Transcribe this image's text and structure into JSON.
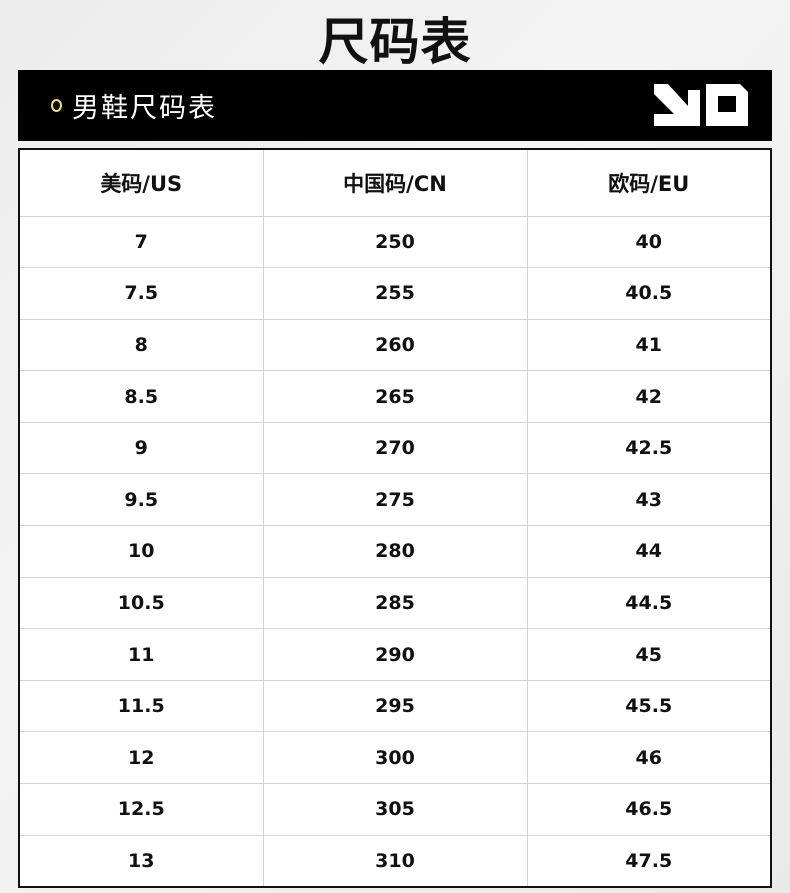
{
  "title": "尺码表",
  "banner": {
    "subtitle": "男鞋尺码表",
    "accent": "#f3e34a",
    "logo": "LD"
  },
  "table": {
    "headers": [
      "美码/US",
      "中国码/CN",
      "欧码/EU"
    ],
    "rows": [
      [
        "7",
        "250",
        "40"
      ],
      [
        "7.5",
        "255",
        "40.5"
      ],
      [
        "8",
        "260",
        "41"
      ],
      [
        "8.5",
        "265",
        "42"
      ],
      [
        "9",
        "270",
        "42.5"
      ],
      [
        "9.5",
        "275",
        "43"
      ],
      [
        "10",
        "280",
        "44"
      ],
      [
        "10.5",
        "285",
        "44.5"
      ],
      [
        "11",
        "290",
        "45"
      ],
      [
        "11.5",
        "295",
        "45.5"
      ],
      [
        "12",
        "300",
        "46"
      ],
      [
        "12.5",
        "305",
        "46.5"
      ],
      [
        "13",
        "310",
        "47.5"
      ]
    ]
  }
}
